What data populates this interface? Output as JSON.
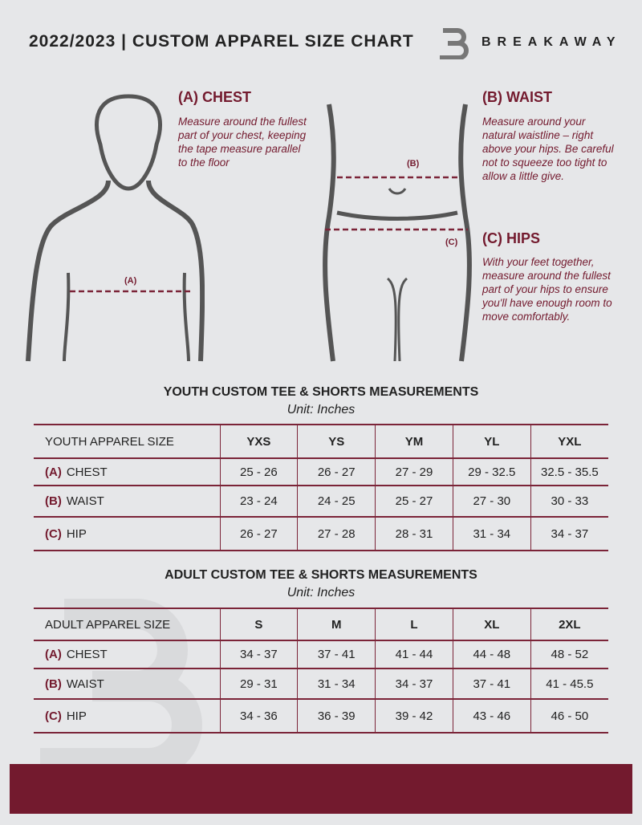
{
  "header": {
    "title": "2022/2023 | CUSTOM APPAREL SIZE CHART",
    "brand": "BREAKAWAY"
  },
  "colors": {
    "accent": "#731a2e",
    "background": "#e6e7e9"
  },
  "guide": {
    "chest": {
      "title": "(A) CHEST",
      "text": "Measure around the fullest part of your chest, keeping the tape measure parallel to the floor",
      "marker": "(A)"
    },
    "waist": {
      "title": "(B) WAIST",
      "text": "Measure around your natural waistline – right above your hips. Be careful not to squeeze too tight to allow a little give.",
      "marker": "(B)"
    },
    "hips": {
      "title": "(C) HIPS",
      "text": "With your feet together, measure around the fullest part of your hips to ensure you'll have enough room to move comfortably.",
      "marker": "(C)"
    }
  },
  "youth": {
    "title": "YOUTH CUSTOM TEE & SHORTS MEASUREMENTS",
    "unit": "Unit: Inches",
    "header": "YOUTH APPAREL SIZE",
    "sizes": [
      "YXS",
      "YS",
      "YM",
      "YL",
      "YXL"
    ],
    "rows": [
      {
        "code": "(A)",
        "label": "CHEST",
        "values": [
          "25 - 26",
          "26 - 27",
          "27 - 29",
          "29 - 32.5",
          "32.5 - 35.5"
        ]
      },
      {
        "code": "(B)",
        "label": "WAIST",
        "values": [
          "23 - 24",
          "24 - 25",
          "25 - 27",
          "27 - 30",
          "30 - 33"
        ]
      },
      {
        "code": "(C)",
        "label": "HIP",
        "values": [
          "26 - 27",
          "27 - 28",
          "28 - 31",
          "31 - 34",
          "34 - 37"
        ]
      }
    ]
  },
  "adult": {
    "title": "ADULT CUSTOM TEE & SHORTS MEASUREMENTS",
    "unit": "Unit: Inches",
    "header": "ADULT APPAREL SIZE",
    "sizes": [
      "S",
      "M",
      "L",
      "XL",
      "2XL"
    ],
    "rows": [
      {
        "code": "(A)",
        "label": "CHEST",
        "values": [
          "34 - 37",
          "37 - 41",
          "41 - 44",
          "44 - 48",
          "48 - 52"
        ]
      },
      {
        "code": "(B)",
        "label": "WAIST",
        "values": [
          "29 - 31",
          "31 - 34",
          "34 - 37",
          "37 - 41",
          "41 - 45.5"
        ]
      },
      {
        "code": "(C)",
        "label": "HIP",
        "values": [
          "34 - 36",
          "36 - 39",
          "39 - 42",
          "43 - 46",
          "46 - 50"
        ]
      }
    ]
  }
}
